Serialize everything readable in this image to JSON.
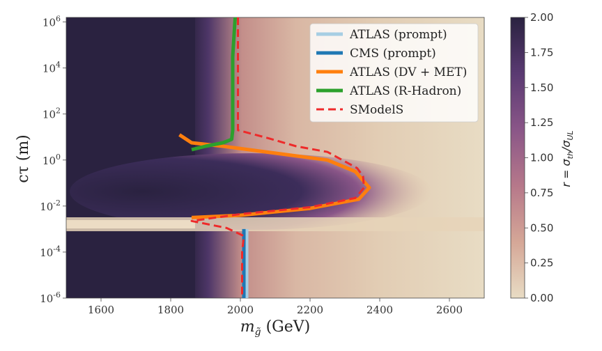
{
  "chart_data": {
    "type": "heatmap",
    "xlabel": "m_g̃ (GeV)",
    "ylabel": "cτ (m)",
    "colorbar_label": "r = σ_th/σ_UL",
    "xlim": [
      1500,
      2700
    ],
    "ylim_log10": [
      -6,
      6.2
    ],
    "y_scale": "log",
    "x_ticks": [
      {
        "value": 1600,
        "label": "1600"
      },
      {
        "value": 1800,
        "label": "1800"
      },
      {
        "value": 2000,
        "label": "2000"
      },
      {
        "value": 2200,
        "label": "2200"
      },
      {
        "value": 2400,
        "label": "2400"
      },
      {
        "value": 2600,
        "label": "2600"
      }
    ],
    "y_ticks": [
      {
        "exp": 6,
        "label": "10^6"
      },
      {
        "exp": 4,
        "label": "10^4"
      },
      {
        "exp": 2,
        "label": "10^2"
      },
      {
        "exp": 0,
        "label": "10^0"
      },
      {
        "exp": -2,
        "label": "10^-2"
      },
      {
        "exp": -4,
        "label": "10^-4"
      },
      {
        "exp": -6,
        "label": "10^-6"
      }
    ],
    "colorbar": {
      "range": [
        0,
        2
      ],
      "ticks": [
        "0.00",
        "0.25",
        "0.50",
        "0.75",
        "1.00",
        "1.25",
        "1.50",
        "1.75",
        "2.00"
      ],
      "colors": [
        "#e8dcc4",
        "#d5a797",
        "#b6788a",
        "#8a5688",
        "#5a3a72",
        "#2a2240"
      ]
    },
    "legend_position": "top-right",
    "series": [
      {
        "name": "ATLAS (prompt)",
        "color": "#a6cee3",
        "style": "solid",
        "points": [
          [
            2018,
            -3.0
          ],
          [
            2018,
            -6.0
          ]
        ]
      },
      {
        "name": "CMS (prompt)",
        "color": "#1f78b4",
        "style": "solid",
        "points": [
          [
            2010,
            -3.0
          ],
          [
            2010,
            -6.0
          ]
        ]
      },
      {
        "name": "ATLAS (DV + MET)",
        "color": "#ff7f0e",
        "style": "solid",
        "points": [
          [
            1825,
            1.1
          ],
          [
            1860,
            0.75
          ],
          [
            1950,
            0.6
          ],
          [
            2100,
            0.3
          ],
          [
            2250,
            0.0
          ],
          [
            2330,
            -0.5
          ],
          [
            2370,
            -1.2
          ],
          [
            2340,
            -1.7
          ],
          [
            2200,
            -2.1
          ],
          [
            2000,
            -2.4
          ],
          [
            1860,
            -2.5
          ]
        ]
      },
      {
        "name": "ATLAS (R-Hadron)",
        "color": "#2ca02c",
        "style": "solid",
        "points": [
          [
            1860,
            0.45
          ],
          [
            1900,
            0.6
          ],
          [
            1950,
            0.75
          ],
          [
            1975,
            0.9
          ],
          [
            1978,
            1.3
          ],
          [
            1978,
            4.5
          ],
          [
            1985,
            6.2
          ]
        ]
      },
      {
        "name": "SModelS",
        "color": "#ee2a2a",
        "style": "dashed",
        "points": [
          [
            1993,
            6.2
          ],
          [
            1993,
            1.3
          ],
          [
            2080,
            0.95
          ],
          [
            2160,
            0.6
          ],
          [
            2250,
            0.35
          ],
          [
            2335,
            -0.35
          ],
          [
            2352,
            -0.7
          ],
          [
            2355,
            -1.2
          ],
          [
            2330,
            -1.65
          ],
          [
            2200,
            -2.05
          ],
          [
            2000,
            -2.35
          ],
          [
            1860,
            -2.65
          ],
          [
            1960,
            -2.95
          ],
          [
            2010,
            -3.3
          ],
          [
            2005,
            -4.0
          ],
          [
            2005,
            -6.0
          ]
        ]
      }
    ]
  },
  "ui": {
    "axis_x_prefix": "m",
    "axis_x_sub": "g̃",
    "axis_x_suffix": " (GeV)",
    "axis_y": "cτ (m)",
    "cb_r": "r = σ",
    "cb_th": "th",
    "cb_div": "/σ",
    "cb_ul": "UL"
  }
}
